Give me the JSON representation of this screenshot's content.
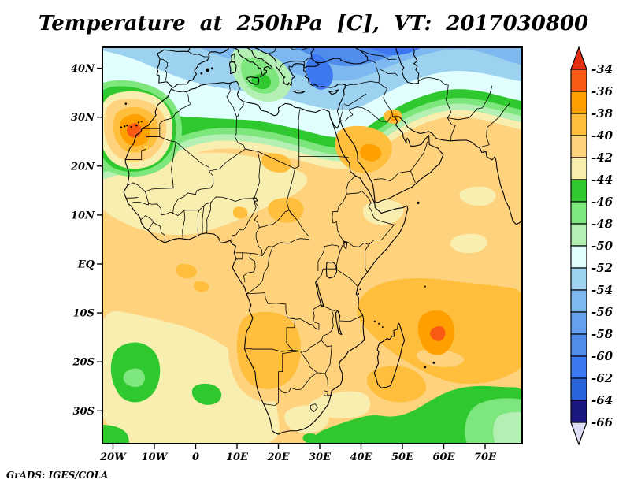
{
  "title": "Temperature at 250hPa [C], VT: 2017030800",
  "attribution": "GrADS: IGES/COLA",
  "axes": {
    "lat_ticks": [
      {
        "label": "40N",
        "value": 40
      },
      {
        "label": "30N",
        "value": 30
      },
      {
        "label": "20N",
        "value": 20
      },
      {
        "label": "10N",
        "value": 10
      },
      {
        "label": "EQ",
        "value": 0
      },
      {
        "label": "10S",
        "value": -10
      },
      {
        "label": "20S",
        "value": -20
      },
      {
        "label": "30S",
        "value": -30
      }
    ],
    "lon_ticks": [
      {
        "label": "20W",
        "value": -20
      },
      {
        "label": "10W",
        "value": -10
      },
      {
        "label": "0",
        "value": 0
      },
      {
        "label": "10E",
        "value": 10
      },
      {
        "label": "20E",
        "value": 20
      },
      {
        "label": "30E",
        "value": 30
      },
      {
        "label": "40E",
        "value": 40
      },
      {
        "label": "50E",
        "value": 50
      },
      {
        "label": "60E",
        "value": 60
      },
      {
        "label": "70E",
        "value": 70
      }
    ]
  },
  "chart_data": {
    "type": "heatmap",
    "title": "Temperature at 250hPa [C], VT: 2017030800",
    "variable": "Temperature",
    "level": "250hPa",
    "units": "C",
    "valid_time": "2017030800",
    "region": "Africa / Mediterranean / Middle East",
    "contour_interval": 2,
    "colorbar": {
      "labels": [
        "-34",
        "-36",
        "-38",
        "-40",
        "-42",
        "-44",
        "-46",
        "-48",
        "-50",
        "-52",
        "-54",
        "-56",
        "-58",
        "-60",
        "-62",
        "-64",
        "-66"
      ],
      "segment_colors": [
        "#fa5a14",
        "#ffa000",
        "#ffbe3c",
        "#ffd27d",
        "#f8eeb0",
        "#2fc82f",
        "#7de67d",
        "#b4f0b4",
        "#e1ffff",
        "#9cd2f0",
        "#7db9f0",
        "#64a0eb",
        "#508ceb",
        "#3c78f0",
        "#2864dc",
        "#191980"
      ],
      "above_range_color": "#e62e14",
      "below_range_color": "#dcdcf5"
    },
    "features": [
      {
        "name": "warm anomaly west of Morocco near Canary Islands",
        "approx_value_C": -35
      },
      {
        "name": "warm anomaly over northern Madagascar",
        "approx_value_C": -35
      },
      {
        "name": "cold trough over eastern Mediterranean, Aegean and Turkey",
        "approx_value_C": -62
      },
      {
        "name": "deep cold over NE Turkey / Caucasus",
        "approx_value_C": -64
      },
      {
        "name": "subtropical transition band -44 to -50 across North Africa near 28-34N"
      },
      {
        "name": "green patch over Sicily / Ionian Sea",
        "approx_value_C": -46
      },
      {
        "name": "warm tropical belt over Sahara, Arabia and Indian Ocean",
        "approx_value_C": -40
      },
      {
        "name": "warm pool SW Indian Ocean east of Mozambique",
        "approx_value_C": -38
      },
      {
        "name": "warm patch over Red Sea / NE Sudan",
        "approx_value_C": -37
      },
      {
        "name": "warm patch near Kuwait / head of Persian Gulf",
        "approx_value_C": -38
      },
      {
        "name": "warm patch over Angola / Namibia",
        "approx_value_C": -38
      },
      {
        "name": "cool band along southern edge (Southern Ocean)",
        "approx_value_C": -45
      },
      {
        "name": "cool blobs in subtropical South Atlantic near 20S 15W",
        "approx_value_C": -45
      }
    ]
  }
}
